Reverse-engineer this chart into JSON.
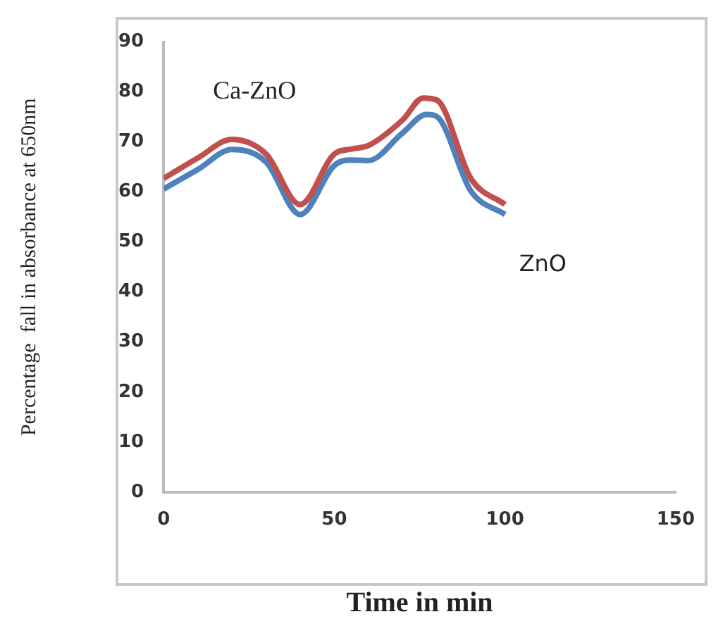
{
  "chart_data": {
    "type": "line",
    "xlabel": "Time in min",
    "ylabel": "Percentage  fall in absorbance at 650nm",
    "xlim": [
      0,
      150
    ],
    "xticks": [
      0,
      50,
      100,
      150
    ],
    "ylim": [
      0,
      90
    ],
    "yticks": [
      0,
      10,
      20,
      30,
      40,
      50,
      60,
      70,
      80,
      90
    ],
    "grid": false,
    "legend": false,
    "marker": "none",
    "line_style": "solid",
    "series": [
      {
        "name": "Ca-ZnO",
        "color": "#c0504d",
        "x": [
          0,
          10,
          20,
          30,
          40,
          50,
          55,
          60,
          70,
          76,
          80,
          90,
          100
        ],
        "values": [
          62.7,
          66.8,
          70.5,
          67.6,
          57.5,
          67.6,
          68.6,
          69.3,
          74.4,
          78.8,
          78.4,
          62.7,
          57.5
        ]
      },
      {
        "name": "ZnO",
        "color": "#4f81bd",
        "x": [
          0,
          10,
          20,
          30,
          40,
          50,
          55,
          60,
          70,
          77,
          80,
          90,
          100
        ],
        "values": [
          60.6,
          64.5,
          68.5,
          66,
          55.5,
          65.3,
          66.4,
          66.3,
          71.8,
          75.5,
          75.1,
          60.2,
          55.5
        ]
      }
    ]
  }
}
